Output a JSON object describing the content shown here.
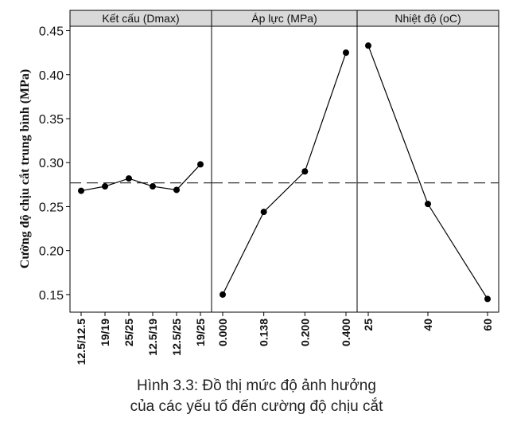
{
  "chart_data": {
    "type": "line",
    "ylabel": "Cường độ chịu cắt trung bình (MPa)",
    "ylim": [
      0.13,
      0.455
    ],
    "y_ticks": [
      "0.15",
      "0.20",
      "0.25",
      "0.30",
      "0.35",
      "0.40",
      "0.45"
    ],
    "reference_line": 0.277,
    "reference_style": "dashed",
    "panels": [
      {
        "title": "Kết cấu (Dmax)",
        "categories": [
          "12.5/12.5",
          "19/19",
          "25/25",
          "12.5/19",
          "12.5/25",
          "19/25"
        ],
        "values": [
          0.268,
          0.273,
          0.282,
          0.273,
          0.269,
          0.298
        ]
      },
      {
        "title": "Áp lực (MPa)",
        "categories": [
          "0.000",
          "0.138",
          "0.200",
          "0.400"
        ],
        "values": [
          0.15,
          0.244,
          0.29,
          0.425
        ]
      },
      {
        "title": "Nhiệt độ (oC)",
        "categories": [
          "25",
          "40",
          "60"
        ],
        "values": [
          0.433,
          0.253,
          0.145
        ]
      }
    ]
  },
  "caption": {
    "line1": "Hình 3.3: Đồ thị mức độ ảnh hưởng",
    "line2": "của các yếu tố đến cường độ chịu cắt"
  }
}
